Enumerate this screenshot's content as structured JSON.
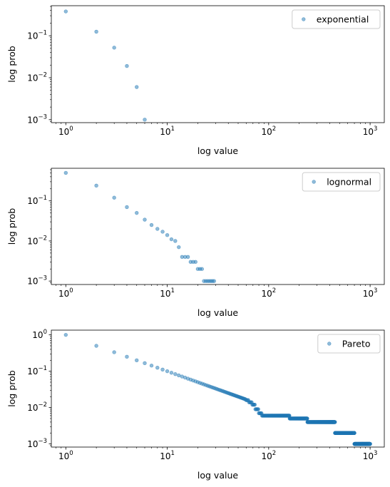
{
  "chart_data": [
    {
      "type": "scatter",
      "xlabel": "log value",
      "ylabel": "log prob",
      "xscale": "log",
      "yscale": "log",
      "xlim": [
        0.72,
        1380
      ],
      "ylim": [
        0.00085,
        0.52
      ],
      "x_ticks": [
        {
          "value": 1,
          "base": "10",
          "exp": "0"
        },
        {
          "value": 10,
          "base": "10",
          "exp": "1"
        },
        {
          "value": 100,
          "base": "10",
          "exp": "2"
        },
        {
          "value": 1000,
          "base": "10",
          "exp": "3"
        }
      ],
      "y_ticks": [
        {
          "value": 0.001,
          "base": "10",
          "exp": "−3"
        },
        {
          "value": 0.01,
          "base": "10",
          "exp": "−2"
        },
        {
          "value": 0.1,
          "base": "10",
          "exp": "−1"
        }
      ],
      "legend_position": "top-right",
      "color": "#1f77b4",
      "series": [
        {
          "name": "exponential",
          "points": [
            [
              1,
              0.38
            ],
            [
              2,
              0.125
            ],
            [
              3,
              0.052
            ],
            [
              4,
              0.019
            ],
            [
              5,
              0.006
            ],
            [
              6,
              0.001
            ]
          ]
        }
      ]
    },
    {
      "type": "scatter",
      "xlabel": "log value",
      "ylabel": "log prob",
      "xscale": "log",
      "yscale": "log",
      "xlim": [
        0.72,
        1380
      ],
      "ylim": [
        0.00082,
        0.65
      ],
      "x_ticks": [
        {
          "value": 1,
          "base": "10",
          "exp": "0"
        },
        {
          "value": 10,
          "base": "10",
          "exp": "1"
        },
        {
          "value": 100,
          "base": "10",
          "exp": "2"
        },
        {
          "value": 1000,
          "base": "10",
          "exp": "3"
        }
      ],
      "y_ticks": [
        {
          "value": 0.001,
          "base": "10",
          "exp": "−3"
        },
        {
          "value": 0.01,
          "base": "10",
          "exp": "−2"
        },
        {
          "value": 0.1,
          "base": "10",
          "exp": "−1"
        }
      ],
      "legend_position": "top-right",
      "color": "#1f77b4",
      "series": [
        {
          "name": "lognormal",
          "points": [
            [
              1,
              0.5
            ],
            [
              2,
              0.24
            ],
            [
              3,
              0.12
            ],
            [
              4,
              0.07
            ],
            [
              5,
              0.05
            ],
            [
              6,
              0.034
            ],
            [
              7,
              0.025
            ],
            [
              8,
              0.02
            ],
            [
              9,
              0.017
            ],
            [
              10,
              0.014
            ],
            [
              11,
              0.011
            ],
            [
              12,
              0.01
            ],
            [
              13,
              0.007
            ],
            [
              14,
              0.004
            ],
            [
              15,
              0.004
            ],
            [
              16,
              0.004
            ],
            [
              17,
              0.003
            ],
            [
              18,
              0.003
            ],
            [
              19,
              0.003
            ],
            [
              20,
              0.002
            ],
            [
              21,
              0.002
            ],
            [
              22,
              0.002
            ],
            [
              23,
              0.001
            ],
            [
              24,
              0.001
            ],
            [
              25,
              0.001
            ],
            [
              26,
              0.001
            ],
            [
              27,
              0.001
            ],
            [
              28,
              0.001
            ],
            [
              29,
              0.001
            ]
          ]
        }
      ]
    },
    {
      "type": "scatter",
      "xlabel": "log value",
      "ylabel": "log prob",
      "xscale": "log",
      "yscale": "log",
      "xlim": [
        0.72,
        1380
      ],
      "ylim": [
        0.00082,
        1.35
      ],
      "x_ticks": [
        {
          "value": 1,
          "base": "10",
          "exp": "0"
        },
        {
          "value": 10,
          "base": "10",
          "exp": "1"
        },
        {
          "value": 100,
          "base": "10",
          "exp": "2"
        },
        {
          "value": 1000,
          "base": "10",
          "exp": "3"
        }
      ],
      "y_ticks": [
        {
          "value": 0.001,
          "base": "10",
          "exp": "−3"
        },
        {
          "value": 0.01,
          "base": "10",
          "exp": "−2"
        },
        {
          "value": 0.1,
          "base": "10",
          "exp": "−1"
        },
        {
          "value": 1,
          "base": "10",
          "exp": "0"
        }
      ],
      "legend_position": "top-right",
      "color": "#1f77b4",
      "series": [
        {
          "name": "Pareto",
          "generator": {
            "x_from": 1,
            "x_to": 1000,
            "steps": [
              {
                "x_max": 59,
                "y_over_x": 1.0
              },
              {
                "x_max": 63,
                "y": 0.016
              },
              {
                "x_max": 68,
                "y": 0.014
              },
              {
                "x_max": 73,
                "y": 0.012
              },
              {
                "x_max": 79,
                "y": 0.009
              },
              {
                "x_max": 85,
                "y": 0.007
              },
              {
                "x_max": 160,
                "y": 0.006
              },
              {
                "x_max": 240,
                "y": 0.005
              },
              {
                "x_max": 450,
                "y": 0.004
              },
              {
                "x_max": 700,
                "y": 0.002
              },
              {
                "x_max": 1000,
                "y": 0.001
              }
            ]
          }
        }
      ]
    }
  ]
}
